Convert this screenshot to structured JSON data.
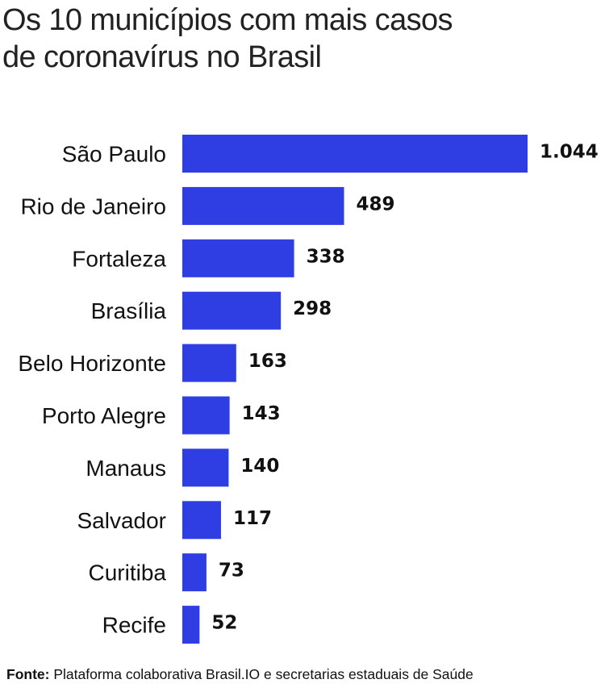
{
  "title_line1": "Os 10 municípios com mais casos",
  "title_line2": "de coronavírus no Brasil",
  "source_label": "Fonte:",
  "source_text": " Plataforma colaborativa Brasil.IO e secretarias estaduais de Saúde",
  "bar_color": "#2e3ee3",
  "chart_data": {
    "type": "bar",
    "orientation": "horizontal",
    "title": "Os 10 municípios com mais casos de coronavírus no Brasil",
    "categories": [
      "São Paulo",
      "Rio de Janeiro",
      "Fortaleza",
      "Brasília",
      "Belo Horizonte",
      "Porto Alegre",
      "Manaus",
      "Salvador",
      "Curitiba",
      "Recife"
    ],
    "values": [
      1044,
      489,
      338,
      298,
      163,
      143,
      140,
      117,
      73,
      52
    ],
    "value_labels": [
      "1.044",
      "489",
      "338",
      "298",
      "163",
      "143",
      "140",
      "117",
      "73",
      "52"
    ],
    "xlabel": "",
    "ylabel": "",
    "grid": false,
    "legend": "none"
  }
}
